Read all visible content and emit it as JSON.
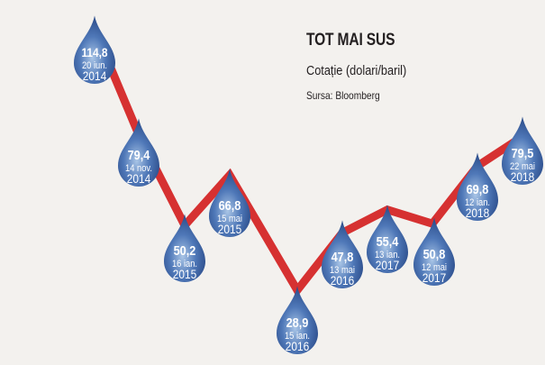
{
  "title": "TOT MAI SUS",
  "subtitle": "Cotație (dolari/baril)",
  "source": "Sursa: Bloomberg",
  "colors": {
    "line": "#d63131",
    "drop_dark": "#1f3d7a",
    "drop_light": "#a9c5e6",
    "background": "#f3f1ee"
  },
  "chart_data": {
    "type": "line",
    "title": "TOT MAI SUS",
    "ylabel": "Cotație (dolari/baril)",
    "grid": false,
    "series": [
      {
        "points": [
          {
            "date": "20 iun. 2014",
            "value": 114.8,
            "label": "114,8",
            "day": "20 iun.",
            "year": "2014"
          },
          {
            "date": "14 nov. 2014",
            "value": 79.4,
            "label": "79,4",
            "day": "14 nov.",
            "year": "2014"
          },
          {
            "date": "16 ian. 2015",
            "value": 50.2,
            "label": "50,2",
            "day": "16 ian.",
            "year": "2015"
          },
          {
            "date": "15 mai 2015",
            "value": 66.8,
            "label": "66,8",
            "day": "15 mai",
            "year": "2015"
          },
          {
            "date": "15 ian. 2016",
            "value": 28.9,
            "label": "28,9",
            "day": "15 ian.",
            "year": "2016"
          },
          {
            "date": "13 mai 2016",
            "value": 47.8,
            "label": "47,8",
            "day": "13 mai",
            "year": "2016"
          },
          {
            "date": "13 ian. 2017",
            "value": 55.4,
            "label": "55,4",
            "day": "13 ian.",
            "year": "2017"
          },
          {
            "date": "12 mai 2017",
            "value": 50.8,
            "label": "50,8",
            "day": "12 mai",
            "year": "2017"
          },
          {
            "date": "12 ian. 2018",
            "value": 69.8,
            "label": "69,8",
            "day": "12 ian.",
            "year": "2018"
          },
          {
            "date": "22 mai 2018",
            "value": 79.5,
            "label": "79,5",
            "day": "22 mai",
            "year": "2018"
          }
        ]
      }
    ]
  }
}
